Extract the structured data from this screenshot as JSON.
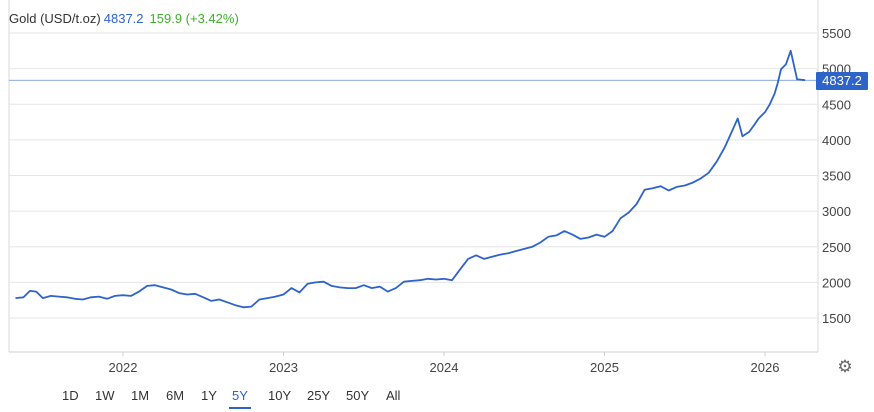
{
  "header": {
    "name": "Gold (USD/t.oz)",
    "price": "4837.2",
    "change": "159.9 (+3.42%)"
  },
  "badge": "4837.2",
  "range_buttons": [
    "1D",
    "1W",
    "1M",
    "6M",
    "1Y",
    "5Y",
    "10Y",
    "25Y",
    "50Y",
    "All"
  ],
  "active_range": "5Y",
  "icons": {
    "settings": "gear-icon"
  },
  "colors": {
    "line": "#2e63c9",
    "change_positive": "#3fae2a",
    "badge_bg": "#2e63c9"
  },
  "chart_data": {
    "type": "line",
    "title": "Gold (USD/t.oz)",
    "xlabel": "",
    "ylabel": "",
    "x_ticks": [
      "2022",
      "2023",
      "2024",
      "2025",
      "2026"
    ],
    "y_ticks": [
      1500,
      2000,
      2500,
      3000,
      3500,
      4000,
      4500,
      5000,
      5500
    ],
    "xlim": [
      2021.33,
      2026.3
    ],
    "ylim": [
      1000,
      5700
    ],
    "last_price": 4837.2,
    "grid": true,
    "series": [
      {
        "name": "Gold (USD/t.oz)",
        "x": [
          2021.33,
          2021.38,
          2021.42,
          2021.46,
          2021.5,
          2021.55,
          2021.6,
          2021.65,
          2021.7,
          2021.75,
          2021.8,
          2021.85,
          2021.9,
          2021.95,
          2022.0,
          2022.05,
          2022.1,
          2022.15,
          2022.2,
          2022.25,
          2022.3,
          2022.35,
          2022.4,
          2022.45,
          2022.5,
          2022.55,
          2022.6,
          2022.65,
          2022.7,
          2022.75,
          2022.8,
          2022.85,
          2022.9,
          2022.95,
          2023.0,
          2023.05,
          2023.1,
          2023.15,
          2023.2,
          2023.25,
          2023.3,
          2023.35,
          2023.4,
          2023.45,
          2023.5,
          2023.55,
          2023.6,
          2023.65,
          2023.7,
          2023.75,
          2023.8,
          2023.85,
          2023.9,
          2023.95,
          2024.0,
          2024.05,
          2024.1,
          2024.15,
          2024.2,
          2024.25,
          2024.3,
          2024.35,
          2024.4,
          2024.45,
          2024.5,
          2024.55,
          2024.6,
          2024.65,
          2024.7,
          2024.75,
          2024.8,
          2024.85,
          2024.9,
          2024.95,
          2025.0,
          2025.05,
          2025.1,
          2025.15,
          2025.2,
          2025.25,
          2025.3,
          2025.35,
          2025.4,
          2025.45,
          2025.5,
          2025.55,
          2025.6,
          2025.65,
          2025.7,
          2025.75,
          2025.8,
          2025.83,
          2025.86,
          2025.9,
          2025.93,
          2025.96,
          2026.0,
          2026.03,
          2026.06,
          2026.08,
          2026.1,
          2026.13,
          2026.16,
          2026.2,
          2026.25
        ],
        "values": [
          1780,
          1790,
          1880,
          1870,
          1780,
          1810,
          1800,
          1790,
          1770,
          1760,
          1790,
          1800,
          1770,
          1810,
          1820,
          1810,
          1870,
          1950,
          1960,
          1930,
          1900,
          1850,
          1830,
          1840,
          1790,
          1740,
          1760,
          1720,
          1680,
          1650,
          1660,
          1760,
          1780,
          1800,
          1830,
          1920,
          1860,
          1980,
          2000,
          2010,
          1950,
          1930,
          1920,
          1920,
          1960,
          1920,
          1940,
          1870,
          1920,
          2010,
          2020,
          2030,
          2050,
          2040,
          2050,
          2030,
          2180,
          2330,
          2380,
          2330,
          2360,
          2390,
          2410,
          2440,
          2470,
          2500,
          2560,
          2640,
          2660,
          2720,
          2670,
          2610,
          2630,
          2670,
          2640,
          2720,
          2900,
          2980,
          3100,
          3300,
          3320,
          3350,
          3290,
          3340,
          3360,
          3400,
          3460,
          3540,
          3700,
          3900,
          4150,
          4300,
          4050,
          4110,
          4200,
          4300,
          4390,
          4500,
          4650,
          4800,
          4990,
          5060,
          5250,
          4850,
          4837.2
        ]
      }
    ]
  }
}
